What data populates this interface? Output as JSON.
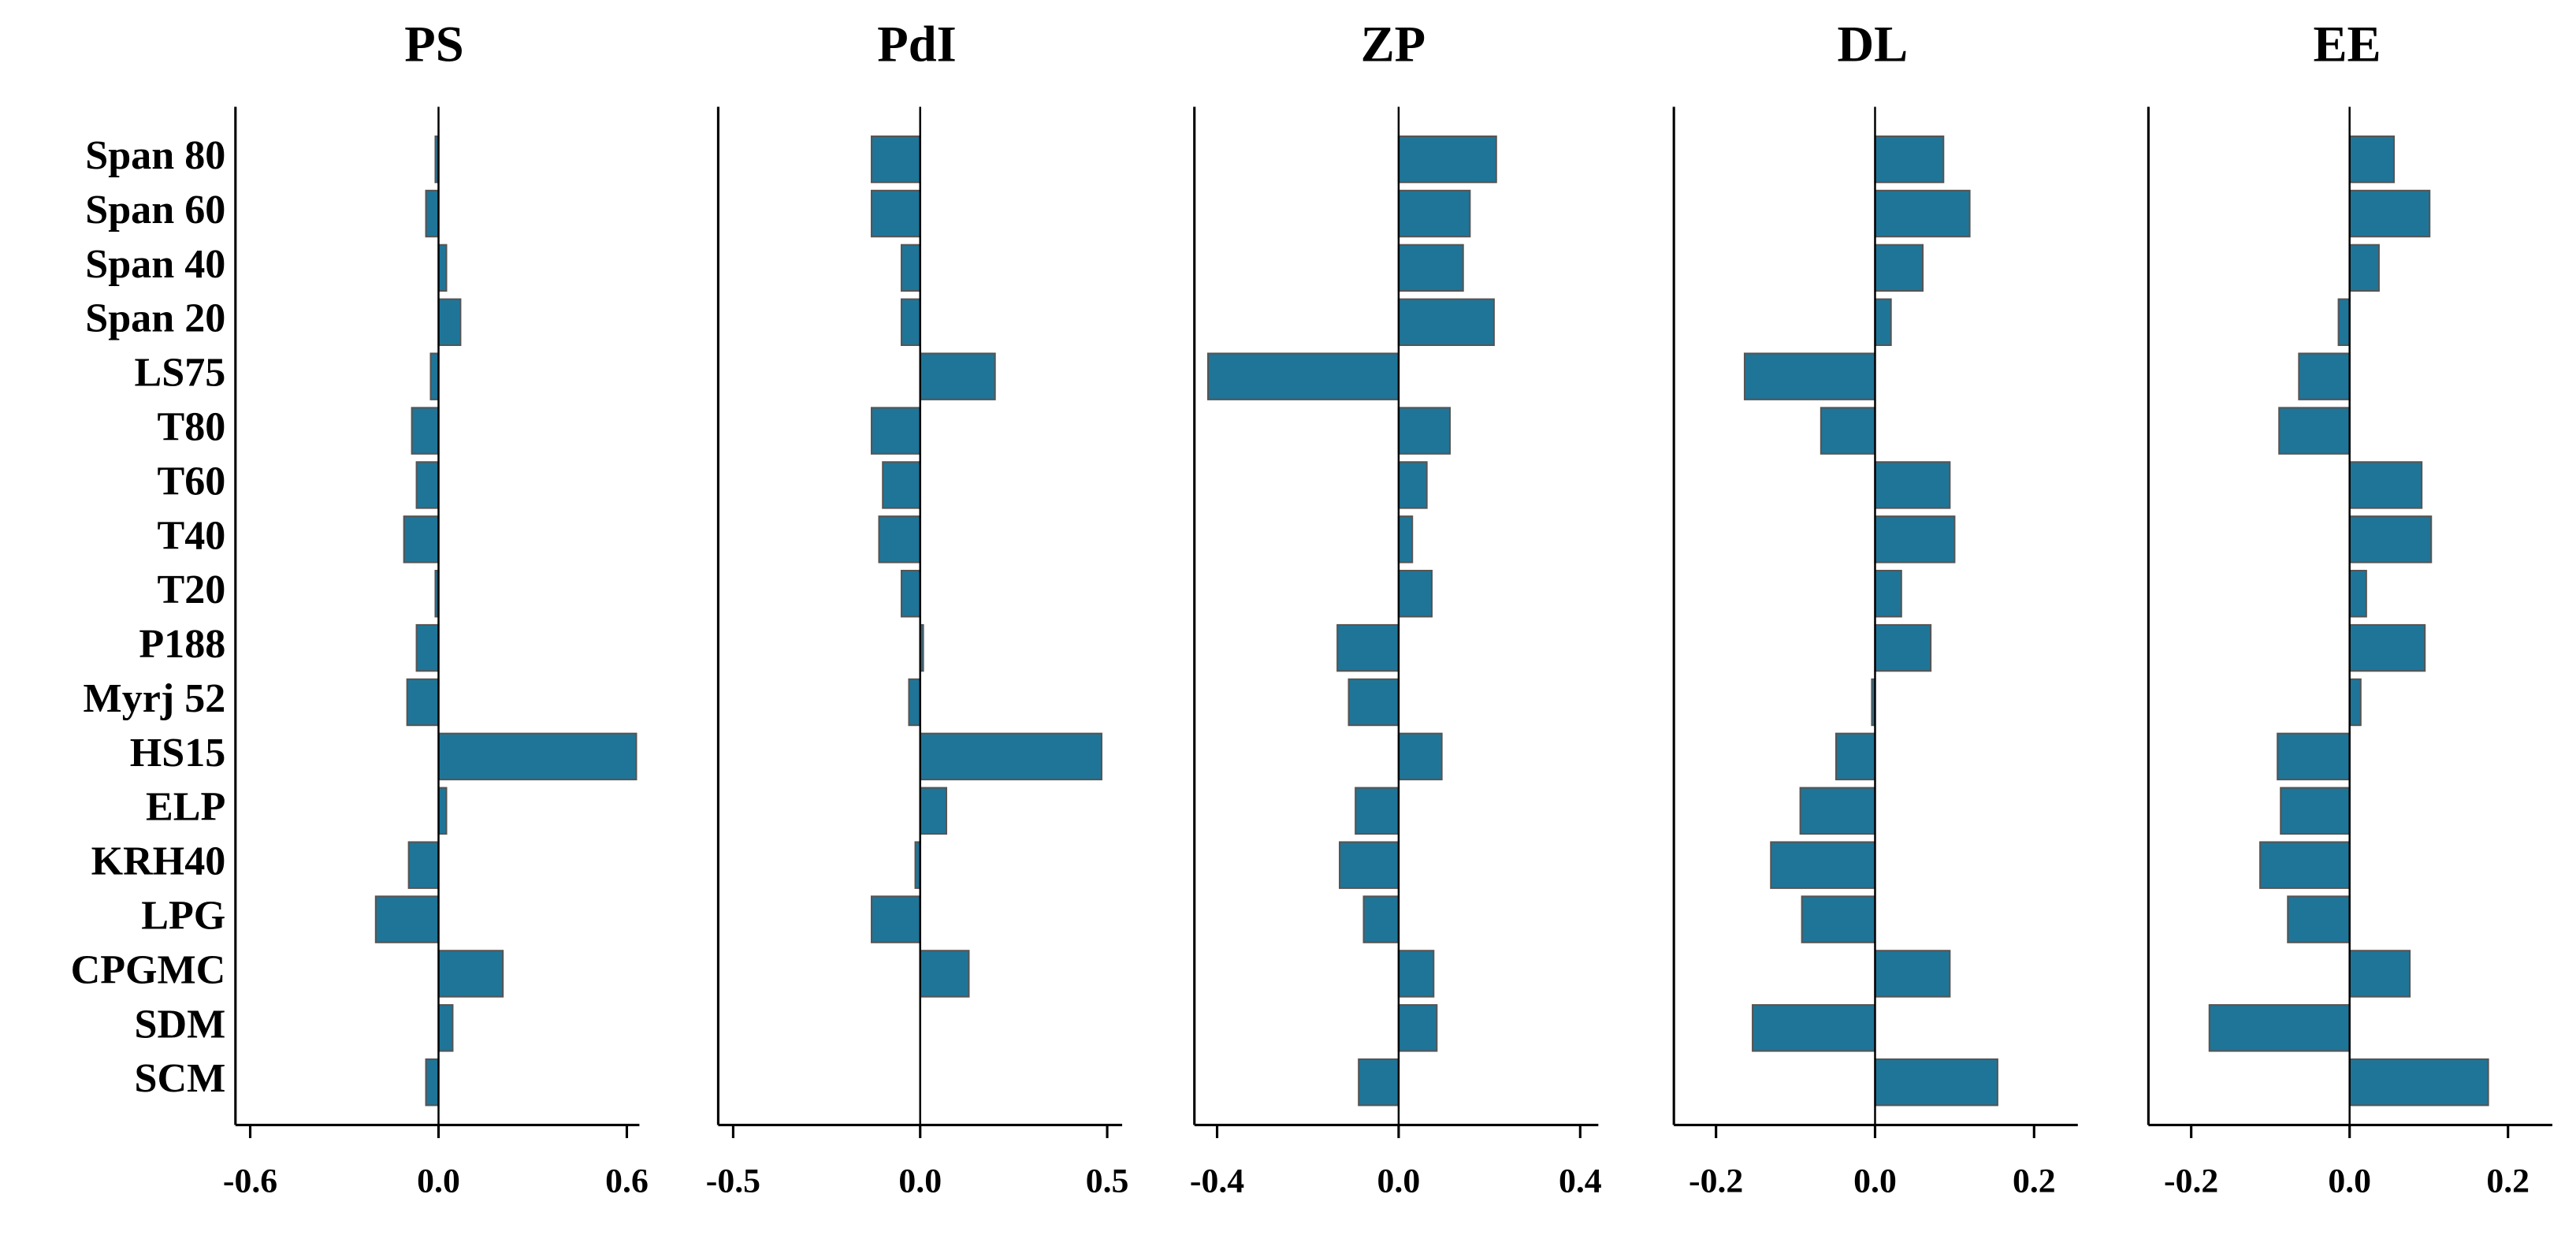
{
  "chart_data": {
    "type": "hbar",
    "categories": [
      "Span 80",
      "Span 60",
      "Span 40",
      "Span 20",
      "LS75",
      "T80",
      "T60",
      "T40",
      "T20",
      "P188",
      "Myrj 52",
      "HS15",
      "ELP",
      "KRH40",
      "LPG",
      "CPGMC",
      "SDM",
      "SCM"
    ],
    "color": "#1f7598",
    "panels": [
      {
        "title": "PS",
        "xlim": [
          -0.647,
          0.64
        ],
        "xticks": [
          -0.6,
          {
            "value": 0,
            "label": "0.0"
          },
          0.6
        ],
        "values": [
          -0.01,
          -0.04,
          0.025,
          0.07,
          -0.025,
          -0.085,
          -0.07,
          -0.11,
          -0.01,
          -0.07,
          -0.1,
          0.63,
          0.025,
          -0.095,
          -0.2,
          0.205,
          0.045,
          -0.04
        ]
      },
      {
        "title": "PdI",
        "xlim": [
          -0.54,
          0.54
        ],
        "xticks": [
          -0.5,
          {
            "value": 0,
            "label": "0.0"
          },
          0.5
        ],
        "values": [
          -0.13,
          -0.13,
          -0.05,
          -0.05,
          0.2,
          -0.13,
          -0.1,
          -0.11,
          -0.05,
          0.008,
          -0.03,
          0.485,
          0.07,
          -0.013,
          -0.13,
          0.13,
          0,
          0
        ]
      },
      {
        "title": "ZP",
        "xlim": [
          -0.45,
          0.44
        ],
        "xticks": [
          -0.4,
          {
            "value": 0,
            "label": "0.0"
          },
          0.4
        ],
        "values": [
          0.215,
          0.157,
          0.142,
          0.21,
          -0.42,
          0.113,
          0.062,
          0.03,
          0.073,
          -0.135,
          -0.11,
          0.095,
          -0.095,
          -0.13,
          -0.077,
          0.077,
          0.084,
          -0.088
        ]
      },
      {
        "title": "DL",
        "xlim": [
          -0.253,
          0.255
        ],
        "xticks": [
          -0.2,
          {
            "value": 0,
            "label": "0.0"
          },
          0.2
        ],
        "values": [
          0.086,
          0.119,
          0.06,
          0.02,
          -0.164,
          -0.068,
          0.094,
          0.1,
          0.033,
          0.07,
          -0.004,
          -0.049,
          -0.094,
          -0.131,
          -0.092,
          0.094,
          -0.154,
          0.154
        ]
      },
      {
        "title": "EE",
        "xlim": [
          -0.254,
          0.256
        ],
        "xticks": [
          -0.2,
          {
            "value": 0,
            "label": "0.0"
          },
          0.2
        ],
        "values": [
          0.056,
          0.101,
          0.037,
          -0.014,
          -0.064,
          -0.089,
          0.091,
          0.103,
          0.021,
          0.095,
          0.014,
          -0.091,
          -0.087,
          -0.113,
          -0.078,
          0.076,
          -0.177,
          0.175
        ]
      }
    ]
  }
}
